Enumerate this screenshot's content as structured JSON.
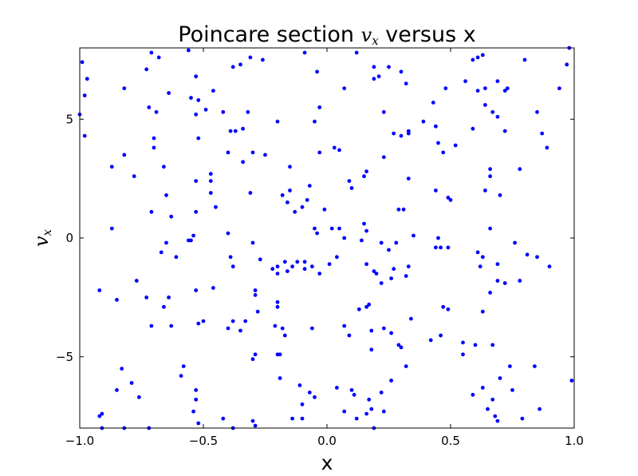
{
  "chart_data": {
    "type": "scatter",
    "title": {
      "prefix": "Poincare section ",
      "math_main": "v",
      "math_sub": "x",
      "suffix": " versus x"
    },
    "xlabel": "x",
    "ylabel": {
      "main": "v",
      "sub": "x"
    },
    "xlim": [
      -1.0,
      1.0
    ],
    "ylim": [
      -8.0,
      8.0
    ],
    "xticks": [
      -1.0,
      -0.5,
      0.0,
      0.5,
      1.0
    ],
    "xtick_labels": [
      "−1.0",
      "−0.5",
      "0.0",
      "0.5",
      "1.0"
    ],
    "yticks": [
      -5,
      0,
      5
    ],
    "ytick_labels": [
      "−5",
      "0",
      "5"
    ],
    "grid": false,
    "legend": "none",
    "marker_color": "#0000ff",
    "points": [
      [
        -0.99,
        7.4
      ],
      [
        -0.98,
        6.0
      ],
      [
        -0.97,
        6.7
      ],
      [
        -0.98,
        4.3
      ],
      [
        -1.0,
        5.2
      ],
      [
        -0.73,
        7.1
      ],
      [
        -0.71,
        7.8
      ],
      [
        -0.68,
        7.6
      ],
      [
        -0.64,
        6.1
      ],
      [
        -0.72,
        5.5
      ],
      [
        -0.69,
        5.3
      ],
      [
        -0.7,
        4.2
      ],
      [
        -0.7,
        3.8
      ],
      [
        -0.66,
        3.0
      ],
      [
        -0.65,
        1.8
      ],
      [
        -0.63,
        0.9
      ],
      [
        -0.71,
        1.1
      ],
      [
        -0.87,
        3.0
      ],
      [
        -0.82,
        3.5
      ],
      [
        -0.78,
        2.6
      ],
      [
        -0.82,
        6.3
      ],
      [
        -0.87,
        0.4
      ],
      [
        -0.56,
        7.9
      ],
      [
        -0.53,
        6.8
      ],
      [
        -0.55,
        5.9
      ],
      [
        -0.52,
        5.8
      ],
      [
        -0.49,
        5.4
      ],
      [
        -0.53,
        5.2
      ],
      [
        -0.46,
        6.2
      ],
      [
        -0.52,
        4.2
      ],
      [
        -0.47,
        2.7
      ],
      [
        -0.47,
        2.4
      ],
      [
        -0.47,
        1.9
      ],
      [
        -0.53,
        2.4
      ],
      [
        -0.53,
        1.1
      ],
      [
        -0.55,
        -0.1
      ],
      [
        -0.54,
        0.1
      ],
      [
        -0.42,
        5.3
      ],
      [
        -0.38,
        7.2
      ],
      [
        -0.31,
        7.6
      ],
      [
        -0.35,
        7.3
      ],
      [
        -0.32,
        5.3
      ],
      [
        -0.34,
        4.6
      ],
      [
        -0.37,
        4.5
      ],
      [
        -0.39,
        4.5
      ],
      [
        -0.4,
        3.6
      ],
      [
        -0.34,
        3.2
      ],
      [
        -0.3,
        3.6
      ],
      [
        -0.31,
        1.9
      ],
      [
        -0.45,
        1.3
      ],
      [
        -0.4,
        0.2
      ],
      [
        -0.39,
        -0.8
      ],
      [
        -0.38,
        -1.2
      ],
      [
        -0.3,
        -0.2
      ],
      [
        -0.27,
        -0.9
      ],
      [
        -0.67,
        -0.6
      ],
      [
        -0.65,
        -0.2
      ],
      [
        -0.61,
        -0.8
      ],
      [
        -0.56,
        -0.1
      ],
      [
        -0.2,
        4.9
      ],
      [
        -0.25,
        3.5
      ],
      [
        -0.26,
        7.5
      ],
      [
        -0.18,
        1.8
      ],
      [
        -0.15,
        3.0
      ],
      [
        -0.15,
        2.0
      ],
      [
        -0.16,
        1.5
      ],
      [
        -0.13,
        1.1
      ],
      [
        -0.09,
        7.8
      ],
      [
        -0.04,
        7.0
      ],
      [
        -0.03,
        5.5
      ],
      [
        -0.05,
        4.9
      ],
      [
        -0.03,
        3.6
      ],
      [
        -0.1,
        1.3
      ],
      [
        -0.08,
        1.6
      ],
      [
        -0.07,
        2.2
      ],
      [
        -0.05,
        0.4
      ],
      [
        -0.04,
        0.2
      ],
      [
        -0.01,
        1.2
      ],
      [
        0.02,
        0.4
      ],
      [
        0.05,
        0.4
      ],
      [
        0.07,
        0.0
      ],
      [
        0.04,
        -0.8
      ],
      [
        0.01,
        -1.1
      ],
      [
        -0.06,
        -1.2
      ],
      [
        -0.09,
        -1.0
      ],
      [
        -0.09,
        -1.3
      ],
      [
        -0.03,
        -1.5
      ],
      [
        -0.12,
        -1.0
      ],
      [
        -0.14,
        -1.2
      ],
      [
        -0.17,
        -1.0
      ],
      [
        -0.2,
        -1.2
      ],
      [
        -0.2,
        -1.5
      ],
      [
        -0.22,
        -1.3
      ],
      [
        -0.16,
        -1.4
      ],
      [
        0.03,
        3.8
      ],
      [
        0.05,
        3.7
      ],
      [
        0.07,
        6.3
      ],
      [
        0.09,
        2.4
      ],
      [
        0.1,
        2.1
      ],
      [
        0.12,
        7.8
      ],
      [
        0.15,
        2.6
      ],
      [
        0.16,
        2.8
      ],
      [
        0.15,
        0.6
      ],
      [
        0.16,
        0.3
      ],
      [
        0.14,
        -0.1
      ],
      [
        0.16,
        -1.1
      ],
      [
        0.19,
        -1.4
      ],
      [
        0.2,
        -1.5
      ],
      [
        0.22,
        -1.9
      ],
      [
        0.22,
        -0.2
      ],
      [
        0.25,
        -0.5
      ],
      [
        0.28,
        -0.2
      ],
      [
        0.27,
        -1.3
      ],
      [
        0.26,
        -1.7
      ],
      [
        0.29,
        1.2
      ],
      [
        0.31,
        1.2
      ],
      [
        0.35,
        0.1
      ],
      [
        0.33,
        -1.2
      ],
      [
        0.32,
        -1.6
      ],
      [
        0.19,
        7.2
      ],
      [
        0.19,
        6.7
      ],
      [
        0.21,
        6.8
      ],
      [
        0.25,
        7.2
      ],
      [
        0.3,
        7.0
      ],
      [
        0.32,
        6.5
      ],
      [
        0.23,
        5.3
      ],
      [
        0.27,
        4.4
      ],
      [
        0.3,
        4.3
      ],
      [
        0.33,
        4.5
      ],
      [
        0.33,
        4.4
      ],
      [
        0.23,
        3.4
      ],
      [
        0.33,
        2.5
      ],
      [
        0.39,
        4.9
      ],
      [
        0.43,
        5.7
      ],
      [
        0.44,
        4.7
      ],
      [
        0.48,
        6.3
      ],
      [
        0.45,
        4.0
      ],
      [
        0.47,
        3.6
      ],
      [
        0.52,
        3.9
      ],
      [
        0.49,
        1.7
      ],
      [
        0.5,
        1.6
      ],
      [
        0.44,
        2.0
      ],
      [
        0.45,
        0.0
      ],
      [
        0.46,
        -0.4
      ],
      [
        0.49,
        -0.4
      ],
      [
        0.44,
        -0.4
      ],
      [
        0.56,
        6.6
      ],
      [
        0.59,
        7.5
      ],
      [
        0.61,
        7.6
      ],
      [
        0.63,
        7.7
      ],
      [
        0.59,
        4.6
      ],
      [
        0.64,
        5.6
      ],
      [
        0.67,
        5.3
      ],
      [
        0.61,
        6.2
      ],
      [
        0.64,
        6.3
      ],
      [
        0.69,
        6.6
      ],
      [
        0.72,
        6.2
      ],
      [
        0.73,
        6.3
      ],
      [
        0.69,
        5.1
      ],
      [
        0.72,
        4.5
      ],
      [
        0.66,
        2.9
      ],
      [
        0.66,
        2.6
      ],
      [
        0.64,
        2.0
      ],
      [
        0.7,
        1.8
      ],
      [
        0.66,
        0.4
      ],
      [
        0.61,
        -0.6
      ],
      [
        0.63,
        -0.8
      ],
      [
        0.69,
        -1.1
      ],
      [
        0.62,
        -1.2
      ],
      [
        0.69,
        -1.8
      ],
      [
        0.72,
        -1.9
      ],
      [
        0.66,
        -2.3
      ],
      [
        0.63,
        -3.1
      ],
      [
        0.76,
        -0.2
      ],
      [
        0.78,
        2.9
      ],
      [
        0.8,
        7.5
      ],
      [
        0.81,
        -0.7
      ],
      [
        0.85,
        -0.8
      ],
      [
        0.87,
        4.4
      ],
      [
        0.85,
        5.3
      ],
      [
        0.89,
        3.8
      ],
      [
        0.94,
        6.3
      ],
      [
        0.97,
        7.3
      ],
      [
        0.98,
        8.0
      ],
      [
        0.9,
        -1.2
      ],
      [
        0.78,
        -1.8
      ],
      [
        -0.92,
        -2.2
      ],
      [
        -0.85,
        -2.6
      ],
      [
        -0.77,
        -1.8
      ],
      [
        -0.73,
        -2.5
      ],
      [
        -0.71,
        -3.7
      ],
      [
        -0.66,
        -2.9
      ],
      [
        -0.64,
        -2.5
      ],
      [
        -0.63,
        -3.7
      ],
      [
        -0.52,
        -3.6
      ],
      [
        -0.5,
        -3.5
      ],
      [
        -0.53,
        -2.2
      ],
      [
        -0.46,
        -2.1
      ],
      [
        -0.4,
        -3.8
      ],
      [
        -0.38,
        -3.5
      ],
      [
        -0.35,
        -3.9
      ],
      [
        -0.33,
        -3.5
      ],
      [
        -0.29,
        -2.2
      ],
      [
        -0.29,
        -2.4
      ],
      [
        -0.28,
        -3.1
      ],
      [
        -0.2,
        -2.7
      ],
      [
        -0.2,
        -2.9
      ],
      [
        -0.21,
        -3.7
      ],
      [
        -0.18,
        -3.8
      ],
      [
        -0.17,
        -4.1
      ],
      [
        -0.2,
        -4.9
      ],
      [
        -0.19,
        -4.9
      ],
      [
        -0.29,
        -4.9
      ],
      [
        -0.3,
        -5.1
      ],
      [
        -0.06,
        -3.8
      ],
      [
        0.07,
        -3.7
      ],
      [
        0.09,
        -4.1
      ],
      [
        0.13,
        -3.0
      ],
      [
        0.16,
        -2.9
      ],
      [
        0.17,
        -2.8
      ],
      [
        0.18,
        -3.9
      ],
      [
        0.18,
        -4.7
      ],
      [
        0.23,
        -3.8
      ],
      [
        0.26,
        -4.0
      ],
      [
        0.29,
        -4.5
      ],
      [
        0.3,
        -4.6
      ],
      [
        0.32,
        -5.4
      ],
      [
        0.34,
        -3.4
      ],
      [
        0.42,
        -4.3
      ],
      [
        0.46,
        -4.1
      ],
      [
        0.47,
        -2.9
      ],
      [
        0.49,
        -3.0
      ],
      [
        0.55,
        -4.4
      ],
      [
        0.55,
        -4.9
      ],
      [
        0.6,
        -4.5
      ],
      [
        0.67,
        -4.5
      ],
      [
        0.74,
        -5.4
      ],
      [
        0.75,
        -6.4
      ],
      [
        0.7,
        -5.9
      ],
      [
        0.67,
        -6.8
      ],
      [
        0.63,
        -6.3
      ],
      [
        0.59,
        -6.6
      ],
      [
        0.68,
        -7.5
      ],
      [
        0.69,
        -7.7
      ],
      [
        0.65,
        -7.2
      ],
      [
        0.79,
        -7.6
      ],
      [
        0.86,
        -7.2
      ],
      [
        0.84,
        -5.4
      ],
      [
        0.99,
        -6.0
      ],
      [
        -0.83,
        -5.5
      ],
      [
        -0.85,
        -6.4
      ],
      [
        -0.79,
        -6.1
      ],
      [
        -0.76,
        -6.7
      ],
      [
        -0.91,
        -7.4
      ],
      [
        -0.92,
        -7.5
      ],
      [
        -0.91,
        -8.0
      ],
      [
        -0.82,
        -8.0
      ],
      [
        -0.72,
        -8.0
      ],
      [
        -0.59,
        -5.8
      ],
      [
        -0.58,
        -5.4
      ],
      [
        -0.53,
        -6.4
      ],
      [
        -0.53,
        -6.8
      ],
      [
        -0.54,
        -7.3
      ],
      [
        -0.52,
        -7.8
      ],
      [
        -0.42,
        -7.6
      ],
      [
        -0.38,
        -8.0
      ],
      [
        -0.3,
        -7.7
      ],
      [
        -0.29,
        -7.9
      ],
      [
        -0.19,
        -5.9
      ],
      [
        -0.11,
        -6.2
      ],
      [
        -0.07,
        -6.5
      ],
      [
        -0.05,
        -6.7
      ],
      [
        -0.1,
        -7.0
      ],
      [
        -0.1,
        -7.6
      ],
      [
        -0.14,
        -7.6
      ],
      [
        0.04,
        -6.3
      ],
      [
        0.1,
        -6.4
      ],
      [
        0.11,
        -6.6
      ],
      [
        0.17,
        -6.8
      ],
      [
        0.22,
        -6.5
      ],
      [
        0.23,
        -7.3
      ],
      [
        0.18,
        -7.2
      ],
      [
        0.16,
        -7.4
      ],
      [
        0.07,
        -7.3
      ],
      [
        0.19,
        -8.0
      ],
      [
        0.12,
        -7.6
      ],
      [
        0.26,
        -6.0
      ]
    ]
  }
}
